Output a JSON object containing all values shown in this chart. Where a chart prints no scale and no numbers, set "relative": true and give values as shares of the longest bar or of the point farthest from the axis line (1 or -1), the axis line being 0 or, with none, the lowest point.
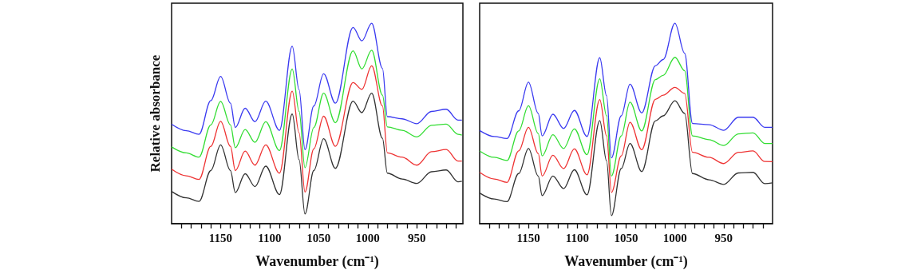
{
  "chart_data": [
    {
      "type": "line",
      "relative": true,
      "xlabel": "Wavenumber (cm⁻¹)",
      "ylabel": "Relative absorbance",
      "xlim": [
        1200,
        903
      ],
      "xticks": [
        {
          "value": 1190,
          "label": null
        },
        {
          "value": 1180,
          "label": null
        },
        {
          "value": 1170,
          "label": null
        },
        {
          "value": 1160,
          "label": null
        },
        1150,
        {
          "value": 1140,
          "label": null
        },
        {
          "value": 1130,
          "label": null
        },
        {
          "value": 1120,
          "label": null
        },
        {
          "value": 1110,
          "label": null
        },
        1100,
        {
          "value": 1090,
          "label": null
        },
        {
          "value": 1080,
          "label": null
        },
        {
          "value": 1070,
          "label": null
        },
        {
          "value": 1060,
          "label": null
        },
        1050,
        {
          "value": 1040,
          "label": null
        },
        {
          "value": 1030,
          "label": null
        },
        {
          "value": 1020,
          "label": null
        },
        {
          "value": 1010,
          "label": null
        },
        1000,
        {
          "value": 990,
          "label": null
        },
        {
          "value": 980,
          "label": null
        },
        {
          "value": 970,
          "label": null
        },
        {
          "value": 960,
          "label": null
        },
        950,
        {
          "value": 940,
          "label": null
        },
        {
          "value": 930,
          "label": null
        },
        {
          "value": 920,
          "label": null
        },
        {
          "value": 910,
          "label": null
        }
      ],
      "grid": false,
      "x": [
        1200,
        1185,
        1172,
        1160,
        1150,
        1140,
        1135,
        1125,
        1115,
        1104,
        1090,
        1077,
        1070,
        1064,
        1055,
        1045,
        1033,
        1015,
        1006,
        996,
        985,
        980,
        965,
        950,
        935,
        920,
        908,
        904
      ],
      "series": [
        {
          "color": "#333333",
          "values": [
            0.161,
            0.129,
            0.111,
            0.265,
            0.393,
            0.265,
            0.155,
            0.249,
            0.185,
            0.287,
            0.145,
            0.547,
            0.319,
            0.048,
            0.265,
            0.424,
            0.276,
            0.611,
            0.554,
            0.651,
            0.426,
            0.252,
            0.223,
            0.201,
            0.259,
            0.268,
            0.209,
            0.212
          ]
        },
        {
          "color": "#ee3333",
          "values": [
            0.272,
            0.239,
            0.221,
            0.386,
            0.511,
            0.386,
            0.265,
            0.362,
            0.292,
            0.393,
            0.252,
            0.661,
            0.453,
            0.158,
            0.373,
            0.536,
            0.386,
            0.704,
            0.67,
            0.788,
            0.587,
            0.353,
            0.332,
            0.292,
            0.359,
            0.37,
            0.312,
            0.312
          ]
        },
        {
          "color": "#33dd33",
          "values": [
            0.383,
            0.353,
            0.332,
            0.493,
            0.61,
            0.493,
            0.379,
            0.47,
            0.406,
            0.509,
            0.365,
            0.772,
            0.56,
            0.279,
            0.48,
            0.651,
            0.504,
            0.862,
            0.772,
            0.865,
            0.641,
            0.483,
            0.466,
            0.433,
            0.491,
            0.497,
            0.446,
            0.442
          ]
        },
        {
          "color": "#3a3af0",
          "values": [
            0.496,
            0.464,
            0.446,
            0.614,
            0.735,
            0.601,
            0.48,
            0.576,
            0.509,
            0.611,
            0.466,
            0.885,
            0.668,
            0.369,
            0.587,
            0.748,
            0.601,
            0.979,
            0.912,
            1.0,
            0.775,
            0.534,
            0.523,
            0.499,
            0.56,
            0.571,
            0.517,
            0.517
          ]
        }
      ]
    },
    {
      "type": "line",
      "relative": true,
      "xlabel": "Wavenumber (cm⁻¹)",
      "tick_labels": "x",
      "xlim": [
        1200,
        900
      ],
      "xticks": [
        {
          "value": 1190,
          "label": null
        },
        {
          "value": 1180,
          "label": null
        },
        {
          "value": 1170,
          "label": null
        },
        {
          "value": 1160,
          "label": null
        },
        1150,
        {
          "value": 1140,
          "label": null
        },
        {
          "value": 1130,
          "label": null
        },
        {
          "value": 1120,
          "label": null
        },
        {
          "value": 1110,
          "label": null
        },
        1100,
        {
          "value": 1090,
          "label": null
        },
        {
          "value": 1080,
          "label": null
        },
        {
          "value": 1070,
          "label": null
        },
        {
          "value": 1060,
          "label": null
        },
        1050,
        {
          "value": 1040,
          "label": null
        },
        {
          "value": 1030,
          "label": null
        },
        {
          "value": 1020,
          "label": null
        },
        {
          "value": 1010,
          "label": null
        },
        1000,
        {
          "value": 990,
          "label": null
        },
        {
          "value": 980,
          "label": null
        },
        {
          "value": 970,
          "label": null
        },
        {
          "value": 960,
          "label": null
        },
        950,
        {
          "value": 940,
          "label": null
        },
        {
          "value": 930,
          "label": null
        },
        {
          "value": 920,
          "label": null
        },
        {
          "value": 910,
          "label": null
        }
      ],
      "grid": false,
      "x": [
        1200,
        1185,
        1172,
        1160,
        1150,
        1140,
        1136,
        1125,
        1114,
        1103,
        1090,
        1077,
        1070,
        1065,
        1055,
        1046,
        1034,
        1020,
        1012,
        1000,
        990,
        982,
        965,
        950,
        935,
        920,
        908,
        900
      ],
      "series": [
        {
          "color": "#333333",
          "values": [
            0.153,
            0.123,
            0.11,
            0.25,
            0.375,
            0.238,
            0.14,
            0.238,
            0.175,
            0.269,
            0.144,
            0.515,
            0.313,
            0.04,
            0.275,
            0.4,
            0.26,
            0.513,
            0.538,
            0.613,
            0.55,
            0.25,
            0.219,
            0.196,
            0.253,
            0.256,
            0.2,
            0.204
          ]
        },
        {
          "color": "#ee3333",
          "values": [
            0.256,
            0.223,
            0.206,
            0.363,
            0.481,
            0.35,
            0.238,
            0.341,
            0.275,
            0.373,
            0.244,
            0.619,
            0.438,
            0.156,
            0.338,
            0.506,
            0.369,
            0.62,
            0.641,
            0.68,
            0.65,
            0.356,
            0.331,
            0.3,
            0.356,
            0.363,
            0.31,
            0.309
          ]
        },
        {
          "color": "#33dd33",
          "values": [
            0.363,
            0.331,
            0.315,
            0.463,
            0.588,
            0.45,
            0.338,
            0.444,
            0.375,
            0.473,
            0.344,
            0.723,
            0.538,
            0.238,
            0.438,
            0.606,
            0.463,
            0.719,
            0.74,
            0.83,
            0.763,
            0.438,
            0.419,
            0.39,
            0.448,
            0.453,
            0.4,
            0.4
          ]
        },
        {
          "color": "#3a3af0",
          "values": [
            0.465,
            0.435,
            0.425,
            0.563,
            0.706,
            0.55,
            0.438,
            0.546,
            0.475,
            0.565,
            0.435,
            0.828,
            0.638,
            0.328,
            0.538,
            0.696,
            0.553,
            0.788,
            0.819,
            1.0,
            0.85,
            0.5,
            0.494,
            0.466,
            0.531,
            0.531,
            0.481,
            0.481
          ]
        }
      ]
    }
  ]
}
